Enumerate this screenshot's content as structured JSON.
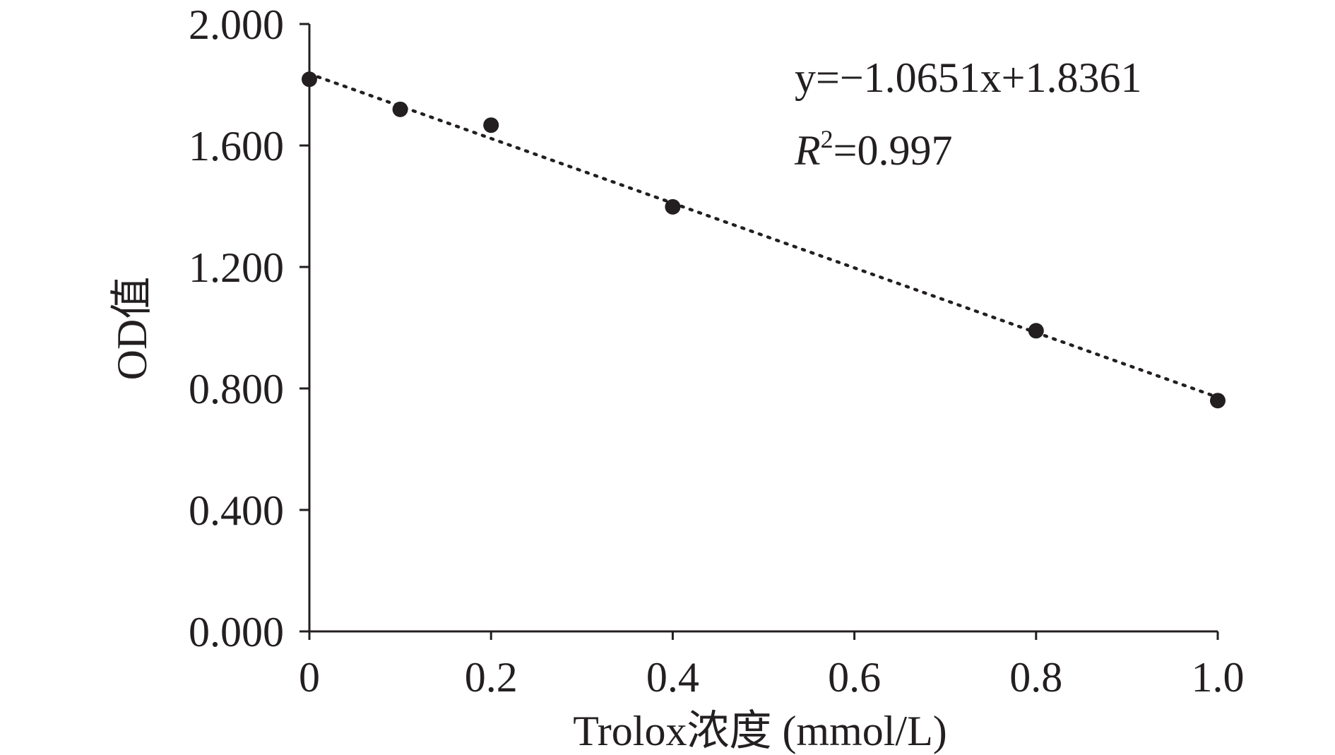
{
  "chart_data": {
    "type": "scatter",
    "x_axis": {
      "label": "Trolox浓度 (mmol/L)",
      "range": [
        0,
        1.0
      ],
      "ticks": [
        0,
        0.2,
        0.4,
        0.6,
        0.8,
        1.0
      ],
      "tick_labels": [
        "0",
        "0.2",
        "0.4",
        "0.6",
        "0.8",
        "1.0"
      ]
    },
    "y_axis": {
      "label": "OD值",
      "range": [
        0,
        2.0
      ],
      "ticks": [
        0,
        0.4,
        0.8,
        1.2,
        1.6,
        2.0
      ],
      "tick_labels": [
        "0.000",
        "0.400",
        "0.800",
        "1.200",
        "1.600",
        "2.000"
      ]
    },
    "series": [
      {
        "x": [
          0,
          0.1,
          0.2,
          0.4,
          0.8,
          1.0
        ],
        "y": [
          1.818,
          1.719,
          1.667,
          1.398,
          0.99,
          0.76
        ]
      }
    ],
    "trendline": {
      "type": "linear",
      "slope": -1.0651,
      "intercept": 1.8361,
      "style": "dotted"
    },
    "annotations": {
      "equation": "y=−1.0651x+1.8361",
      "r2_symbol": "R",
      "r2_exponent": "2",
      "r2_value": "=0.997"
    },
    "grid": false,
    "legend": "none",
    "colors": {
      "ink": "#231f20"
    }
  }
}
